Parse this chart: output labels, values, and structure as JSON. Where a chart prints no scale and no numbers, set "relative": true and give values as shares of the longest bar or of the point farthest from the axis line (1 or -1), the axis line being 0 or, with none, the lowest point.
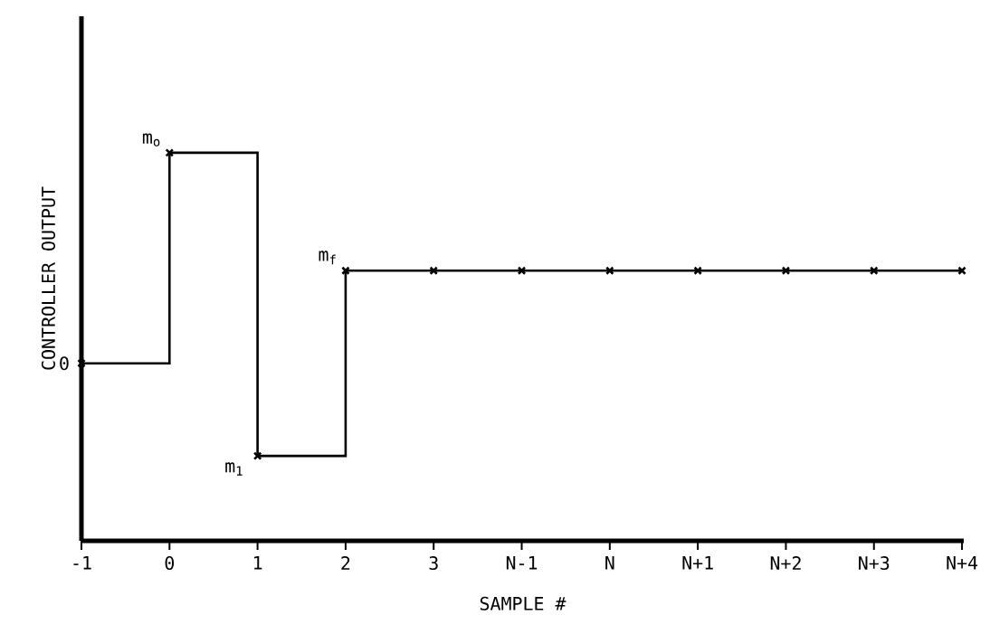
{
  "chart_data": {
    "type": "step",
    "relative": true,
    "xlabel": "SAMPLE #",
    "ylabel": "CONTROLLER OUTPUT",
    "categories": [
      "-1",
      "0",
      "1",
      "2",
      "3",
      "N-1",
      "N",
      "N+1",
      "N+2",
      "N+3",
      "N+4"
    ],
    "values": [
      0,
      1,
      -0.44,
      0.44,
      0.44,
      0.44,
      0.44,
      0.44,
      0.44,
      0.44,
      0.44
    ],
    "color": "#000000",
    "marker": "cross",
    "annotations": [
      {
        "text": "0",
        "x": "-1",
        "y": 0
      },
      {
        "text": "m$_{o}$",
        "x": "0",
        "y": 1
      },
      {
        "text": "m$_{1}$",
        "x": "1",
        "y": -0.44
      },
      {
        "text": "m$_{f}$",
        "x": "2",
        "y": 0.44
      }
    ]
  }
}
